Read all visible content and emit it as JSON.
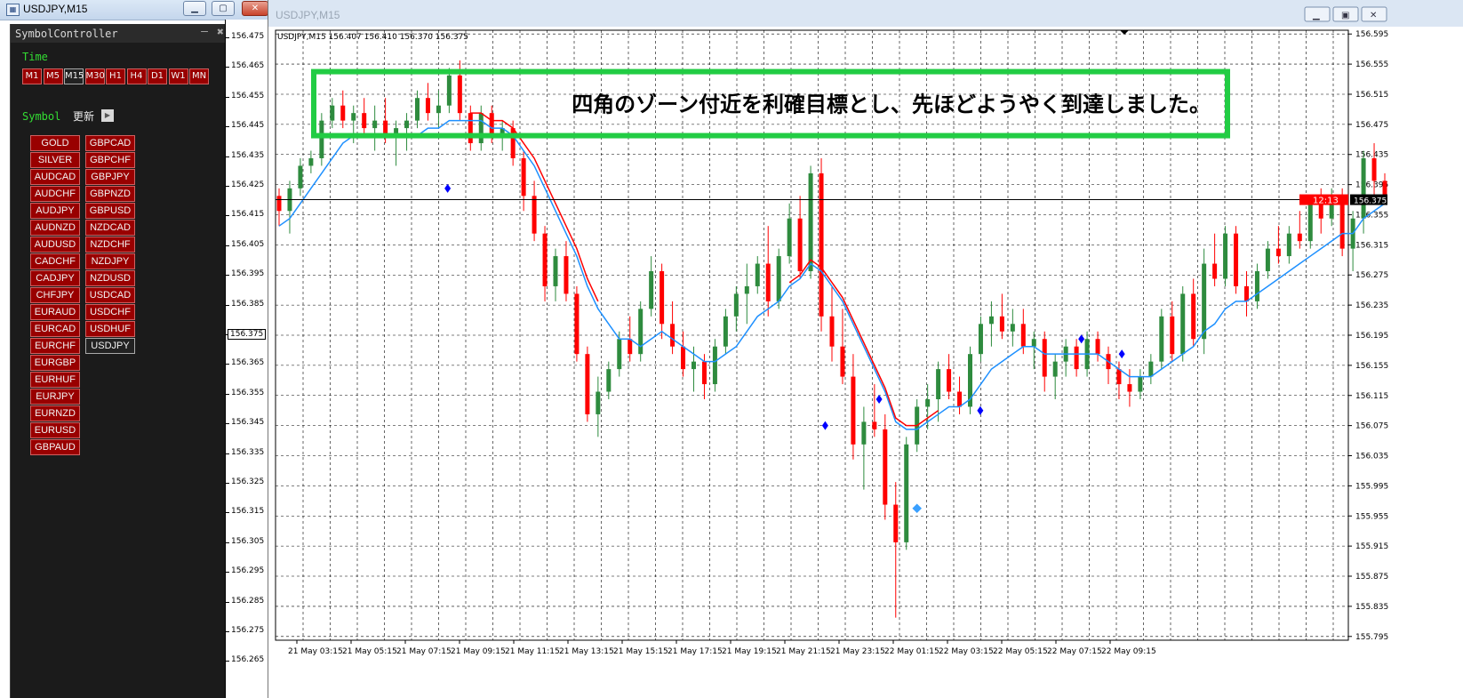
{
  "left_window": {
    "title": "USDJPY,M15",
    "icon": "chart-window-icon",
    "panel_title": "SymbolController",
    "time_label": "Time",
    "timeframes": [
      "M1",
      "M5",
      "M15",
      "M30",
      "H1",
      "H4",
      "D1",
      "W1",
      "MN"
    ],
    "selected_timeframe": "M15",
    "symbol_label": "Symbol",
    "update_label": "更新",
    "symbols_col1": [
      "GOLD",
      "SILVER",
      "AUDCAD",
      "AUDCHF",
      "AUDJPY",
      "AUDNZD",
      "AUDUSD",
      "CADCHF",
      "CADJPY",
      "CHFJPY",
      "EURAUD",
      "EURCAD",
      "EURCHF",
      "EURGBP",
      "EURHUF",
      "EURJPY",
      "EURNZD",
      "EURUSD",
      "GBPAUD"
    ],
    "symbols_col2": [
      "GBPCAD",
      "GBPCHF",
      "GBPJPY",
      "GBPNZD",
      "GBPUSD",
      "NZDCAD",
      "NZDCHF",
      "NZDJPY",
      "NZDUSD",
      "USDCAD",
      "USDCHF",
      "USDHUF",
      "USDJPY"
    ],
    "selected_symbol": "USDJPY",
    "price_labels": [
      "156.475",
      "156.465",
      "156.455",
      "156.445",
      "156.435",
      "156.425",
      "156.415",
      "156.405",
      "156.395",
      "156.385",
      "156.375",
      "156.365",
      "156.355",
      "156.345",
      "156.335",
      "156.325",
      "156.315",
      "156.305",
      "156.295",
      "156.285",
      "156.275",
      "156.265"
    ],
    "current_price": "156.375"
  },
  "main_window": {
    "title": "USDJPY,M15",
    "ohlc_header": "USDJPY,M15  156.407 156.410 156.370 156.375",
    "annotation": "四角のゾーン付近を利確目標とし、先ほどようやく到達しました。",
    "countdown": "12:13",
    "current_price": "156.375",
    "zone_color": "#22cc44",
    "bull_color": "#2e8b3e",
    "bear_color": "#ff0000",
    "ma_fast_color": "#1e90ff",
    "ma_slow_color": "#ff0000",
    "signal_color": "#0000ff"
  },
  "chart_data": {
    "type": "candlestick",
    "symbol": "USDJPY",
    "timeframe": "M15",
    "price_ticks": [
      "156.595",
      "156.555",
      "156.515",
      "156.475",
      "156.435",
      "156.395",
      "156.355",
      "156.315",
      "156.275",
      "156.235",
      "156.195",
      "156.155",
      "156.115",
      "156.075",
      "156.035",
      "155.995",
      "155.955",
      "155.915",
      "155.875",
      "155.835",
      "155.795"
    ],
    "time_ticks": [
      "21 May 03:15",
      "21 May 05:15",
      "21 May 07:15",
      "21 May 09:15",
      "21 May 11:15",
      "21 May 13:15",
      "21 May 15:15",
      "21 May 17:15",
      "21 May 19:15",
      "21 May 21:15",
      "21 May 23:15",
      "22 May 01:15",
      "22 May 03:15",
      "22 May 05:15",
      "22 May 07:15",
      "22 May 09:15"
    ],
    "ylim": [
      155.79,
      156.6
    ],
    "current_price": 156.375,
    "zone": {
      "low": 156.46,
      "high": 156.545
    },
    "candles": [
      [
        156.38,
        156.39,
        156.34,
        156.36
      ],
      [
        156.36,
        156.4,
        156.33,
        156.39
      ],
      [
        156.39,
        156.43,
        156.38,
        156.42
      ],
      [
        156.42,
        156.44,
        156.41,
        156.43
      ],
      [
        156.43,
        156.49,
        156.42,
        156.48
      ],
      [
        156.48,
        156.51,
        156.47,
        156.5
      ],
      [
        156.5,
        156.52,
        156.47,
        156.48
      ],
      [
        156.48,
        156.5,
        156.45,
        156.49
      ],
      [
        156.49,
        156.51,
        156.46,
        156.47
      ],
      [
        156.47,
        156.5,
        156.44,
        156.48
      ],
      [
        156.48,
        156.51,
        156.45,
        156.46
      ],
      [
        156.46,
        156.48,
        156.42,
        156.47
      ],
      [
        156.47,
        156.49,
        156.44,
        156.48
      ],
      [
        156.48,
        156.52,
        156.47,
        156.51
      ],
      [
        156.51,
        156.53,
        156.48,
        156.49
      ],
      [
        156.49,
        156.52,
        156.47,
        156.5
      ],
      [
        156.5,
        156.55,
        156.49,
        156.54
      ],
      [
        156.54,
        156.56,
        156.48,
        156.49
      ],
      [
        156.49,
        156.5,
        156.44,
        156.45
      ],
      [
        156.45,
        156.5,
        156.44,
        156.49
      ],
      [
        156.49,
        156.5,
        156.45,
        156.46
      ],
      [
        156.46,
        156.48,
        156.44,
        156.47
      ],
      [
        156.47,
        156.48,
        156.42,
        156.43
      ],
      [
        156.43,
        156.44,
        156.36,
        156.38
      ],
      [
        156.38,
        156.4,
        156.32,
        156.33
      ],
      [
        156.33,
        156.34,
        156.24,
        156.26
      ],
      [
        156.26,
        156.31,
        156.24,
        156.3
      ],
      [
        156.3,
        156.32,
        156.24,
        156.25
      ],
      [
        156.25,
        156.26,
        156.16,
        156.17
      ],
      [
        156.17,
        156.18,
        156.08,
        156.09
      ],
      [
        156.09,
        156.14,
        156.06,
        156.12
      ],
      [
        156.12,
        156.16,
        156.11,
        156.15
      ],
      [
        156.15,
        156.2,
        156.14,
        156.19
      ],
      [
        156.19,
        156.22,
        156.16,
        156.17
      ],
      [
        156.17,
        156.24,
        156.16,
        156.23
      ],
      [
        156.23,
        156.3,
        156.22,
        156.28
      ],
      [
        156.28,
        156.29,
        156.19,
        156.21
      ],
      [
        156.21,
        156.24,
        156.17,
        156.18
      ],
      [
        156.18,
        156.2,
        156.14,
        156.15
      ],
      [
        156.15,
        156.18,
        156.12,
        156.16
      ],
      [
        156.16,
        156.17,
        156.11,
        156.13
      ],
      [
        156.13,
        156.19,
        156.12,
        156.18
      ],
      [
        156.18,
        156.23,
        156.17,
        156.22
      ],
      [
        156.22,
        156.26,
        156.2,
        156.25
      ],
      [
        156.25,
        156.29,
        156.21,
        156.26
      ],
      [
        156.26,
        156.3,
        156.25,
        156.29
      ],
      [
        156.29,
        156.34,
        156.22,
        156.24
      ],
      [
        156.24,
        156.31,
        156.23,
        156.3
      ],
      [
        156.3,
        156.37,
        156.29,
        156.35
      ],
      [
        156.35,
        156.38,
        156.27,
        156.28
      ],
      [
        156.28,
        156.42,
        156.27,
        156.41
      ],
      [
        156.41,
        156.43,
        156.2,
        156.22
      ],
      [
        156.22,
        156.26,
        156.16,
        156.18
      ],
      [
        156.18,
        156.23,
        156.13,
        156.14
      ],
      [
        156.14,
        156.17,
        156.03,
        156.05
      ],
      [
        156.05,
        156.1,
        155.99,
        156.08
      ],
      [
        156.08,
        156.13,
        156.06,
        156.07
      ],
      [
        156.07,
        156.09,
        155.95,
        155.97
      ],
      [
        155.97,
        156.0,
        155.82,
        155.92
      ],
      [
        155.92,
        156.06,
        155.91,
        156.05
      ],
      [
        156.05,
        156.11,
        156.04,
        156.1
      ],
      [
        156.1,
        156.13,
        156.07,
        156.11
      ],
      [
        156.11,
        156.16,
        156.08,
        156.15
      ],
      [
        156.15,
        156.17,
        156.11,
        156.12
      ],
      [
        156.12,
        156.14,
        156.09,
        156.1
      ],
      [
        156.1,
        156.18,
        156.09,
        156.17
      ],
      [
        156.17,
        156.22,
        156.16,
        156.21
      ],
      [
        156.21,
        156.24,
        156.18,
        156.22
      ],
      [
        156.22,
        156.25,
        156.19,
        156.2
      ],
      [
        156.2,
        156.23,
        156.18,
        156.21
      ],
      [
        156.21,
        156.23,
        156.17,
        156.18
      ],
      [
        156.18,
        156.2,
        156.15,
        156.19
      ],
      [
        156.19,
        156.2,
        156.12,
        156.14
      ],
      [
        156.14,
        156.17,
        156.11,
        156.16
      ],
      [
        156.16,
        156.19,
        156.14,
        156.18
      ],
      [
        156.18,
        156.19,
        156.14,
        156.15
      ],
      [
        156.15,
        156.2,
        156.14,
        156.19
      ],
      [
        156.19,
        156.2,
        156.16,
        156.17
      ],
      [
        156.17,
        156.18,
        156.13,
        156.15
      ],
      [
        156.15,
        156.16,
        156.11,
        156.13
      ],
      [
        156.13,
        156.15,
        156.1,
        156.12
      ],
      [
        156.12,
        156.15,
        156.11,
        156.14
      ],
      [
        156.14,
        156.17,
        156.13,
        156.16
      ],
      [
        156.16,
        156.23,
        156.15,
        156.22
      ],
      [
        156.22,
        156.24,
        156.16,
        156.17
      ],
      [
        156.17,
        156.26,
        156.16,
        156.25
      ],
      [
        156.25,
        156.27,
        156.18,
        156.19
      ],
      [
        156.19,
        156.31,
        156.17,
        156.29
      ],
      [
        156.29,
        156.33,
        156.26,
        156.27
      ],
      [
        156.27,
        156.34,
        156.26,
        156.33
      ],
      [
        156.33,
        156.34,
        156.25,
        156.26
      ],
      [
        156.26,
        156.28,
        156.22,
        156.24
      ],
      [
        156.24,
        156.29,
        156.23,
        156.28
      ],
      [
        156.28,
        156.32,
        156.27,
        156.31
      ],
      [
        156.31,
        156.34,
        156.29,
        156.3
      ],
      [
        156.3,
        156.34,
        156.29,
        156.33
      ],
      [
        156.33,
        156.36,
        156.31,
        156.32
      ],
      [
        156.32,
        156.38,
        156.31,
        156.37
      ],
      [
        156.37,
        156.39,
        156.33,
        156.35
      ],
      [
        156.35,
        156.39,
        156.34,
        156.38
      ],
      [
        156.38,
        156.39,
        156.3,
        156.31
      ],
      [
        156.31,
        156.36,
        156.28,
        156.35
      ],
      [
        156.35,
        156.44,
        156.33,
        156.43
      ],
      [
        156.43,
        156.45,
        156.38,
        156.4
      ],
      [
        156.4,
        156.41,
        156.37,
        156.375
      ]
    ],
    "ma_fast": [
      156.34,
      156.35,
      156.37,
      156.39,
      156.41,
      156.43,
      156.45,
      156.46,
      156.46,
      156.46,
      156.46,
      156.46,
      156.46,
      156.46,
      156.47,
      156.47,
      156.48,
      156.48,
      156.48,
      156.48,
      156.47,
      156.47,
      156.46,
      156.44,
      156.42,
      156.39,
      156.36,
      156.33,
      156.3,
      156.26,
      156.23,
      156.21,
      156.19,
      156.19,
      156.18,
      156.19,
      156.2,
      156.19,
      156.18,
      156.17,
      156.16,
      156.16,
      156.17,
      156.18,
      156.2,
      156.22,
      156.23,
      156.24,
      156.26,
      156.27,
      156.29,
      156.28,
      156.26,
      156.24,
      156.21,
      156.18,
      156.15,
      156.12,
      156.08,
      156.07,
      156.07,
      156.08,
      156.09,
      156.1,
      156.1,
      156.11,
      156.13,
      156.15,
      156.16,
      156.17,
      156.18,
      156.18,
      156.17,
      156.17,
      156.17,
      156.17,
      156.17,
      156.17,
      156.16,
      156.15,
      156.14,
      156.14,
      156.14,
      156.15,
      156.16,
      156.17,
      156.18,
      156.2,
      156.21,
      156.23,
      156.24,
      156.24,
      156.25,
      156.26,
      156.27,
      156.28,
      156.29,
      156.3,
      156.31,
      156.32,
      156.33,
      156.33,
      156.35,
      156.36,
      156.37
    ],
    "signals": [
      [
        25,
        156.39
      ],
      [
        81,
        156.075
      ],
      [
        89,
        156.11
      ],
      [
        104,
        156.095
      ],
      [
        119,
        156.19
      ],
      [
        125,
        156.17
      ]
    ]
  }
}
